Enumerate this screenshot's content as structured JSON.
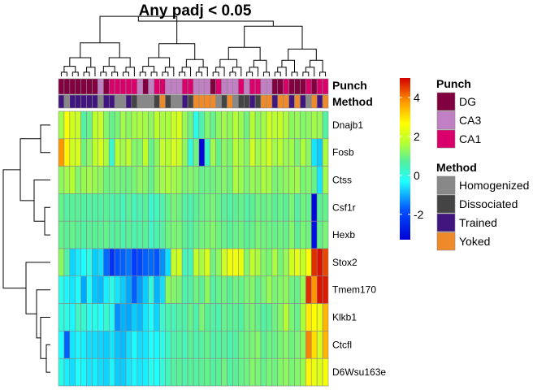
{
  "chart_data": {
    "type": "heatmap",
    "title": "Any padj < 0.05",
    "rows": [
      "Dnajb1",
      "Fosb",
      "Ctss",
      "Csf1r",
      "Hexb",
      "Stox2",
      "Tmem170",
      "Klkb1",
      "Ctcfl",
      "D6Wsu163e"
    ],
    "annotation_labels": [
      "Punch",
      "Method"
    ],
    "punch": [
      "DG",
      "DG",
      "DG",
      "DG",
      "DG",
      "DG",
      "DG",
      "CA3",
      "DG",
      "CA1",
      "CA1",
      "CA1",
      "CA1",
      "CA1",
      "CA3",
      "DG",
      "CA3",
      "CA1",
      "CA1",
      "CA3",
      "CA3",
      "CA3",
      "CA1",
      "CA1",
      "CA3",
      "CA3",
      "CA3",
      "DG",
      "CA1",
      "CA3",
      "CA3",
      "CA3",
      "CA1",
      "CA3",
      "CA1",
      "CA1",
      "CA3",
      "CA3",
      "DG",
      "DG",
      "CA1",
      "DG",
      "DG",
      "DG",
      "CA1",
      "DG",
      "CA1",
      "CA1"
    ],
    "method": [
      "Trained",
      "Homogenized",
      "Trained",
      "Trained",
      "Trained",
      "Trained",
      "Trained",
      "Homogenized",
      "Trained",
      "Trained",
      "Homogenized",
      "Homogenized",
      "Trained",
      "Dissociated",
      "Homogenized",
      "Homogenized",
      "Homogenized",
      "Dissociated",
      "Yoked",
      "Dissociated",
      "Homogenized",
      "Homogenized",
      "Trained",
      "Dissociated",
      "Yoked",
      "Yoked",
      "Yoked",
      "Yoked",
      "Homogenized",
      "Dissociated",
      "Yoked",
      "Homogenized",
      "Dissociated",
      "Dissociated",
      "Trained",
      "Dissociated",
      "Yoked",
      "Yoked",
      "Trained",
      "Yoked",
      "Yoked",
      "Trained",
      "Yoked",
      "Trained",
      "Homogenized",
      "Yoked",
      "Trained",
      "Yoked"
    ],
    "values": [
      [
        1.0,
        2.2,
        1.6,
        1.5,
        0.2,
        0.4,
        1.3,
        1.5,
        0.7,
        0.4,
        0.6,
        1.0,
        0.8,
        1.0,
        1.1,
        1.0,
        0.8,
        1.3,
        1.1,
        1.1,
        1.5,
        1.7,
        0.9,
        0.5,
        -0.4,
        0.1,
        0.7,
        0.4,
        0.8,
        1.0,
        0.8,
        1.2,
        0.9,
        0.5,
        1.2,
        0.8,
        1.0,
        1.5,
        1.3,
        1.4,
        1.1,
        0.8,
        0.9,
        0.7,
        0.8,
        1.0,
        0.9,
        0.2
      ],
      [
        3.3,
        2.4,
        1.6,
        1.7,
        0.5,
        0.8,
        1.3,
        1.7,
        1.1,
        -0.2,
        1.2,
        1.0,
        1.3,
        0.7,
        0.7,
        1.4,
        0.4,
        0.8,
        1.4,
        1.2,
        1.7,
        1.5,
        0.8,
        -0.3,
        0.5,
        -3.2,
        -0.1,
        1.0,
        0.4,
        0.8,
        0.6,
        1.2,
        1.0,
        0.7,
        1.6,
        1.0,
        1.2,
        1.6,
        1.0,
        1.2,
        0.9,
        1.0,
        0.6,
        1.1,
        0.8,
        -0.9,
        -1.2,
        1.1
      ],
      [
        0.8,
        1.0,
        1.2,
        0.7,
        0.9,
        1.0,
        0.9,
        0.8,
        0.5,
        0.5,
        0.6,
        0.5,
        0.5,
        0.6,
        0.8,
        0.7,
        0.4,
        0.8,
        1.0,
        1.1,
        1.0,
        0.9,
        0.6,
        0.7,
        0.6,
        0.4,
        0.5,
        0.5,
        0.6,
        0.7,
        0.5,
        1.1,
        0.9,
        0.6,
        0.9,
        0.8,
        1.1,
        1.0,
        0.6,
        0.7,
        0.8,
        0.9,
        1.0,
        0.6,
        0.7,
        0.4,
        -0.9,
        1.0
      ],
      [
        0.4,
        0.2,
        0.3,
        0.3,
        0.2,
        0.2,
        0.2,
        0.2,
        0.3,
        0.1,
        0.2,
        0.0,
        0.3,
        0.0,
        0.1,
        0.3,
        -0.2,
        0.0,
        0.1,
        0.4,
        0.6,
        0.5,
        0.2,
        0.1,
        0.3,
        0.4,
        0.5,
        0.6,
        0.4,
        0.3,
        0.2,
        0.3,
        0.4,
        0.2,
        0.3,
        0.5,
        0.4,
        0.5,
        0.3,
        0.4,
        0.3,
        0.6,
        0.2,
        0.5,
        0.4,
        -3.2,
        0.3,
        0.4
      ],
      [
        0.4,
        0.3,
        0.4,
        0.3,
        0.2,
        0.3,
        0.3,
        0.3,
        0.4,
        0.2,
        0.3,
        0.1,
        0.3,
        0.1,
        0.2,
        0.3,
        -0.1,
        0.1,
        0.2,
        0.5,
        0.6,
        0.6,
        0.3,
        0.2,
        0.4,
        0.5,
        0.6,
        0.7,
        0.5,
        0.4,
        0.3,
        0.4,
        0.5,
        0.3,
        0.4,
        0.6,
        0.5,
        0.5,
        0.4,
        0.5,
        0.4,
        0.7,
        0.3,
        0.6,
        0.5,
        -3.1,
        0.4,
        0.6
      ],
      [
        0.8,
        0.1,
        -1.1,
        -0.8,
        -0.6,
        -0.4,
        -1.2,
        -1.0,
        -2.1,
        -2.6,
        -2.3,
        -2.2,
        -2.0,
        -2.5,
        -2.4,
        -2.2,
        -2.1,
        -2.3,
        -1.8,
        -1.0,
        1.4,
        1.6,
        0.0,
        0.0,
        1.4,
        1.1,
        1.7,
        0.5,
        0.8,
        1.6,
        2.0,
        2.1,
        1.9,
        0.7,
        1.3,
        1.1,
        0.7,
        0.6,
        1.1,
        0.6,
        0.9,
        1.6,
        1.9,
        1.4,
        2.3,
        4.5,
        4.8,
        4.2
      ],
      [
        -0.4,
        -0.7,
        -0.9,
        -0.6,
        -1.6,
        -0.6,
        -1.3,
        -1.4,
        -0.8,
        -0.4,
        -0.9,
        -1.2,
        -1.6,
        -2.2,
        -1.7,
        -1.2,
        -0.3,
        -1.5,
        -1.0,
        0.8,
        0.7,
        0.6,
        0.1,
        0.2,
        0.5,
        0.3,
        0.8,
        0.2,
        0.4,
        0.5,
        0.3,
        0.5,
        0.4,
        0.6,
        0.7,
        0.4,
        0.6,
        0.9,
        0.6,
        0.7,
        0.8,
        0.5,
        0.4,
        0.9,
        4.5,
        3.3,
        4.8,
        4.7
      ],
      [
        -0.3,
        -0.4,
        -0.7,
        -0.1,
        -0.2,
        -0.5,
        -0.4,
        -0.6,
        -0.2,
        -0.5,
        -1.8,
        -1.5,
        -1.6,
        -1.2,
        -1.4,
        -0.9,
        -0.6,
        -1.1,
        -0.2,
        0.1,
        0.0,
        0.2,
        0.1,
        0.4,
        0.1,
        0.6,
        0.3,
        0.2,
        0.1,
        0.4,
        0.3,
        0.3,
        0.2,
        0.5,
        0.6,
        0.4,
        0.2,
        0.3,
        0.5,
        0.7,
        1.2,
        0.6,
        0.4,
        1.1,
        2.5,
        2.3,
        2.0,
        3.0
      ],
      [
        -0.6,
        -2.2,
        -0.9,
        -0.7,
        -0.8,
        -1.0,
        -1.0,
        -1.1,
        -1.2,
        -0.9,
        -1.3,
        -1.4,
        -1.0,
        -0.6,
        -1.0,
        -0.9,
        -0.6,
        -0.7,
        -0.4,
        -0.1,
        0.1,
        0.2,
        0.0,
        0.3,
        0.1,
        0.2,
        0.4,
        0.1,
        0.2,
        0.3,
        0.1,
        0.2,
        0.4,
        0.5,
        0.6,
        0.7,
        0.3,
        0.5,
        0.4,
        0.6,
        0.7,
        0.5,
        0.6,
        0.8,
        3.5,
        2.6,
        1.7,
        3.0
      ],
      [
        -0.4,
        -0.8,
        -1.0,
        -0.6,
        -0.7,
        -0.9,
        -0.8,
        -1.0,
        -1.1,
        -0.7,
        -1.2,
        -1.2,
        -0.9,
        -0.7,
        -0.9,
        -0.8,
        -0.5,
        -0.6,
        -0.3,
        0.0,
        0.2,
        0.3,
        0.1,
        0.3,
        0.2,
        0.3,
        0.4,
        0.2,
        0.3,
        0.5,
        0.2,
        0.3,
        0.4,
        0.5,
        0.7,
        0.6,
        0.4,
        0.6,
        0.5,
        0.7,
        0.8,
        0.6,
        0.7,
        0.9,
        2.4,
        2.0,
        1.8,
        2.2
      ]
    ],
    "colorbar": {
      "ticks": [
        4,
        2,
        0,
        -2
      ],
      "min": -3.3,
      "max": 5.0
    },
    "legends": [
      {
        "title": "Punch",
        "items": [
          {
            "label": "DG",
            "color": "#800040"
          },
          {
            "label": "CA3",
            "color": "#c17fc4"
          },
          {
            "label": "CA1",
            "color": "#d9006c"
          }
        ]
      },
      {
        "title": "Method",
        "items": [
          {
            "label": "Homogenized",
            "color": "#888888"
          },
          {
            "label": "Dissociated",
            "color": "#444444"
          },
          {
            "label": "Trained",
            "color": "#41157e"
          },
          {
            "label": "Yoked",
            "color": "#ef8a2b"
          }
        ]
      }
    ]
  }
}
